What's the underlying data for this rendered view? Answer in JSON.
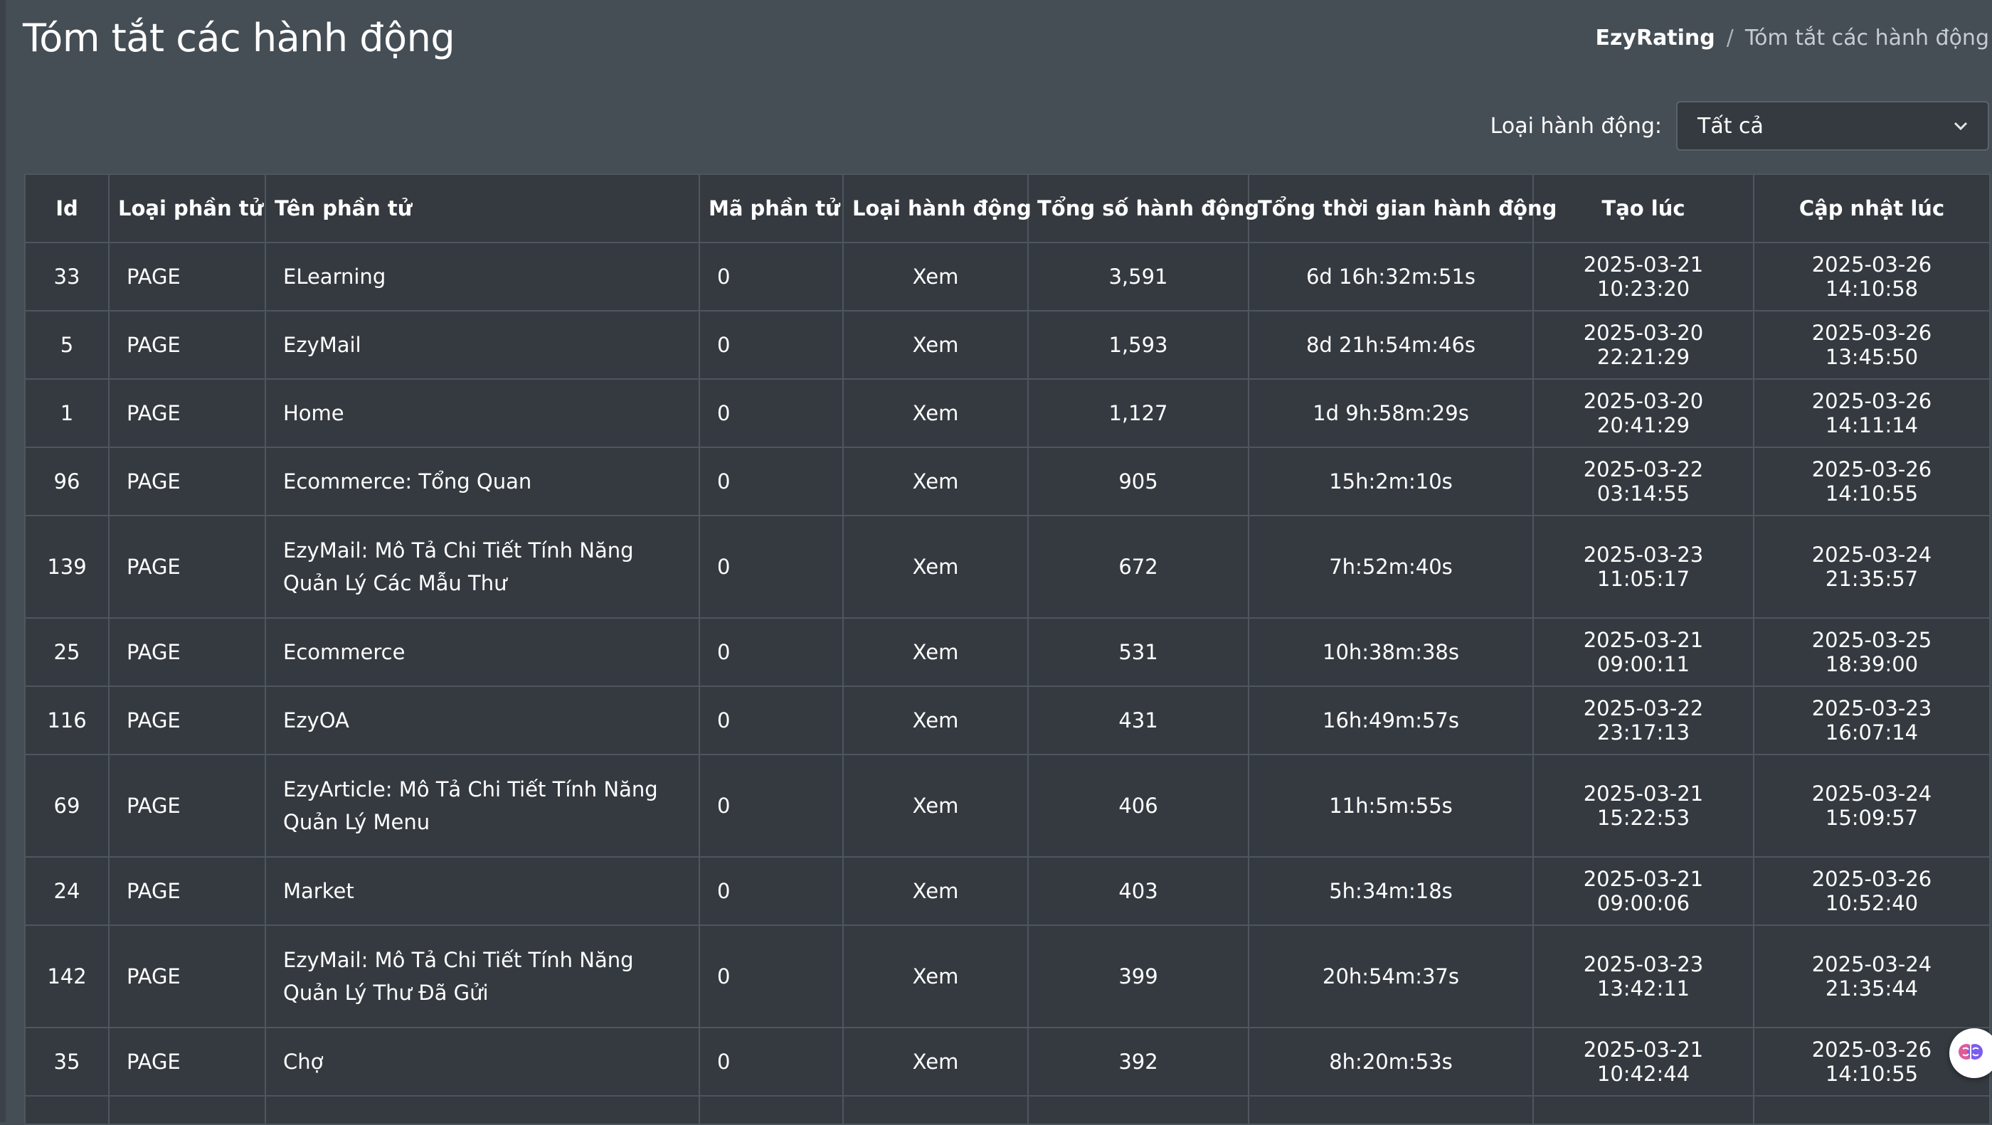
{
  "page": {
    "title": "Tóm tắt các hành động"
  },
  "breadcrumb": {
    "root": "EzyRating",
    "separator": "/",
    "current": "Tóm tắt các hành động"
  },
  "filter": {
    "label": "Loại hành động:",
    "selected": "Tất cả"
  },
  "table": {
    "headers": [
      "Id",
      "Loại phần tử",
      "Tên phần tử",
      "Mã phần tử",
      "Loại hành động",
      "Tổng số hành động",
      "Tổng thời gian hành động",
      "Tạo lúc",
      "Cập nhật lúc"
    ],
    "rows": [
      {
        "id": "33",
        "type": "PAGE",
        "name": "ELearning",
        "code": "0",
        "action": "Xem",
        "count": "3,591",
        "duration": "6d 16h:32m:51s",
        "created": "2025-03-21 10:23:20",
        "updated": "2025-03-26 14:10:58"
      },
      {
        "id": "5",
        "type": "PAGE",
        "name": "EzyMail",
        "code": "0",
        "action": "Xem",
        "count": "1,593",
        "duration": "8d 21h:54m:46s",
        "created": "2025-03-20 22:21:29",
        "updated": "2025-03-26 13:45:50"
      },
      {
        "id": "1",
        "type": "PAGE",
        "name": "Home",
        "code": "0",
        "action": "Xem",
        "count": "1,127",
        "duration": "1d 9h:58m:29s",
        "created": "2025-03-20 20:41:29",
        "updated": "2025-03-26 14:11:14"
      },
      {
        "id": "96",
        "type": "PAGE",
        "name": "Ecommerce: Tổng Quan",
        "code": "0",
        "action": "Xem",
        "count": "905",
        "duration": "15h:2m:10s",
        "created": "2025-03-22 03:14:55",
        "updated": "2025-03-26 14:10:55"
      },
      {
        "id": "139",
        "type": "PAGE",
        "name": "EzyMail: Mô Tả Chi Tiết Tính Năng Quản Lý Các Mẫu Thư",
        "code": "0",
        "action": "Xem",
        "count": "672",
        "duration": "7h:52m:40s",
        "created": "2025-03-23 11:05:17",
        "updated": "2025-03-24 21:35:57"
      },
      {
        "id": "25",
        "type": "PAGE",
        "name": "Ecommerce",
        "code": "0",
        "action": "Xem",
        "count": "531",
        "duration": "10h:38m:38s",
        "created": "2025-03-21 09:00:11",
        "updated": "2025-03-25 18:39:00"
      },
      {
        "id": "116",
        "type": "PAGE",
        "name": "EzyOA",
        "code": "0",
        "action": "Xem",
        "count": "431",
        "duration": "16h:49m:57s",
        "created": "2025-03-22 23:17:13",
        "updated": "2025-03-23 16:07:14"
      },
      {
        "id": "69",
        "type": "PAGE",
        "name": "EzyArticle: Mô Tả Chi Tiết Tính Năng Quản Lý Menu",
        "code": "0",
        "action": "Xem",
        "count": "406",
        "duration": "11h:5m:55s",
        "created": "2025-03-21 15:22:53",
        "updated": "2025-03-24 15:09:57"
      },
      {
        "id": "24",
        "type": "PAGE",
        "name": "Market",
        "code": "0",
        "action": "Xem",
        "count": "403",
        "duration": "5h:34m:18s",
        "created": "2025-03-21 09:00:06",
        "updated": "2025-03-26 10:52:40"
      },
      {
        "id": "142",
        "type": "PAGE",
        "name": "EzyMail: Mô Tả Chi Tiết Tính Năng Quản Lý Thư Đã Gửi",
        "code": "0",
        "action": "Xem",
        "count": "399",
        "duration": "20h:54m:37s",
        "created": "2025-03-23 13:42:11",
        "updated": "2025-03-24 21:35:44"
      },
      {
        "id": "35",
        "type": "PAGE",
        "name": "Chợ",
        "code": "0",
        "action": "Xem",
        "count": "392",
        "duration": "8h:20m:53s",
        "created": "2025-03-21 10:42:44",
        "updated": "2025-03-26 14:10:55"
      }
    ]
  },
  "colors": {
    "page_bg": "#454d55",
    "table_bg": "#343a40",
    "border": "#4e565e",
    "text": "#ffffff"
  }
}
